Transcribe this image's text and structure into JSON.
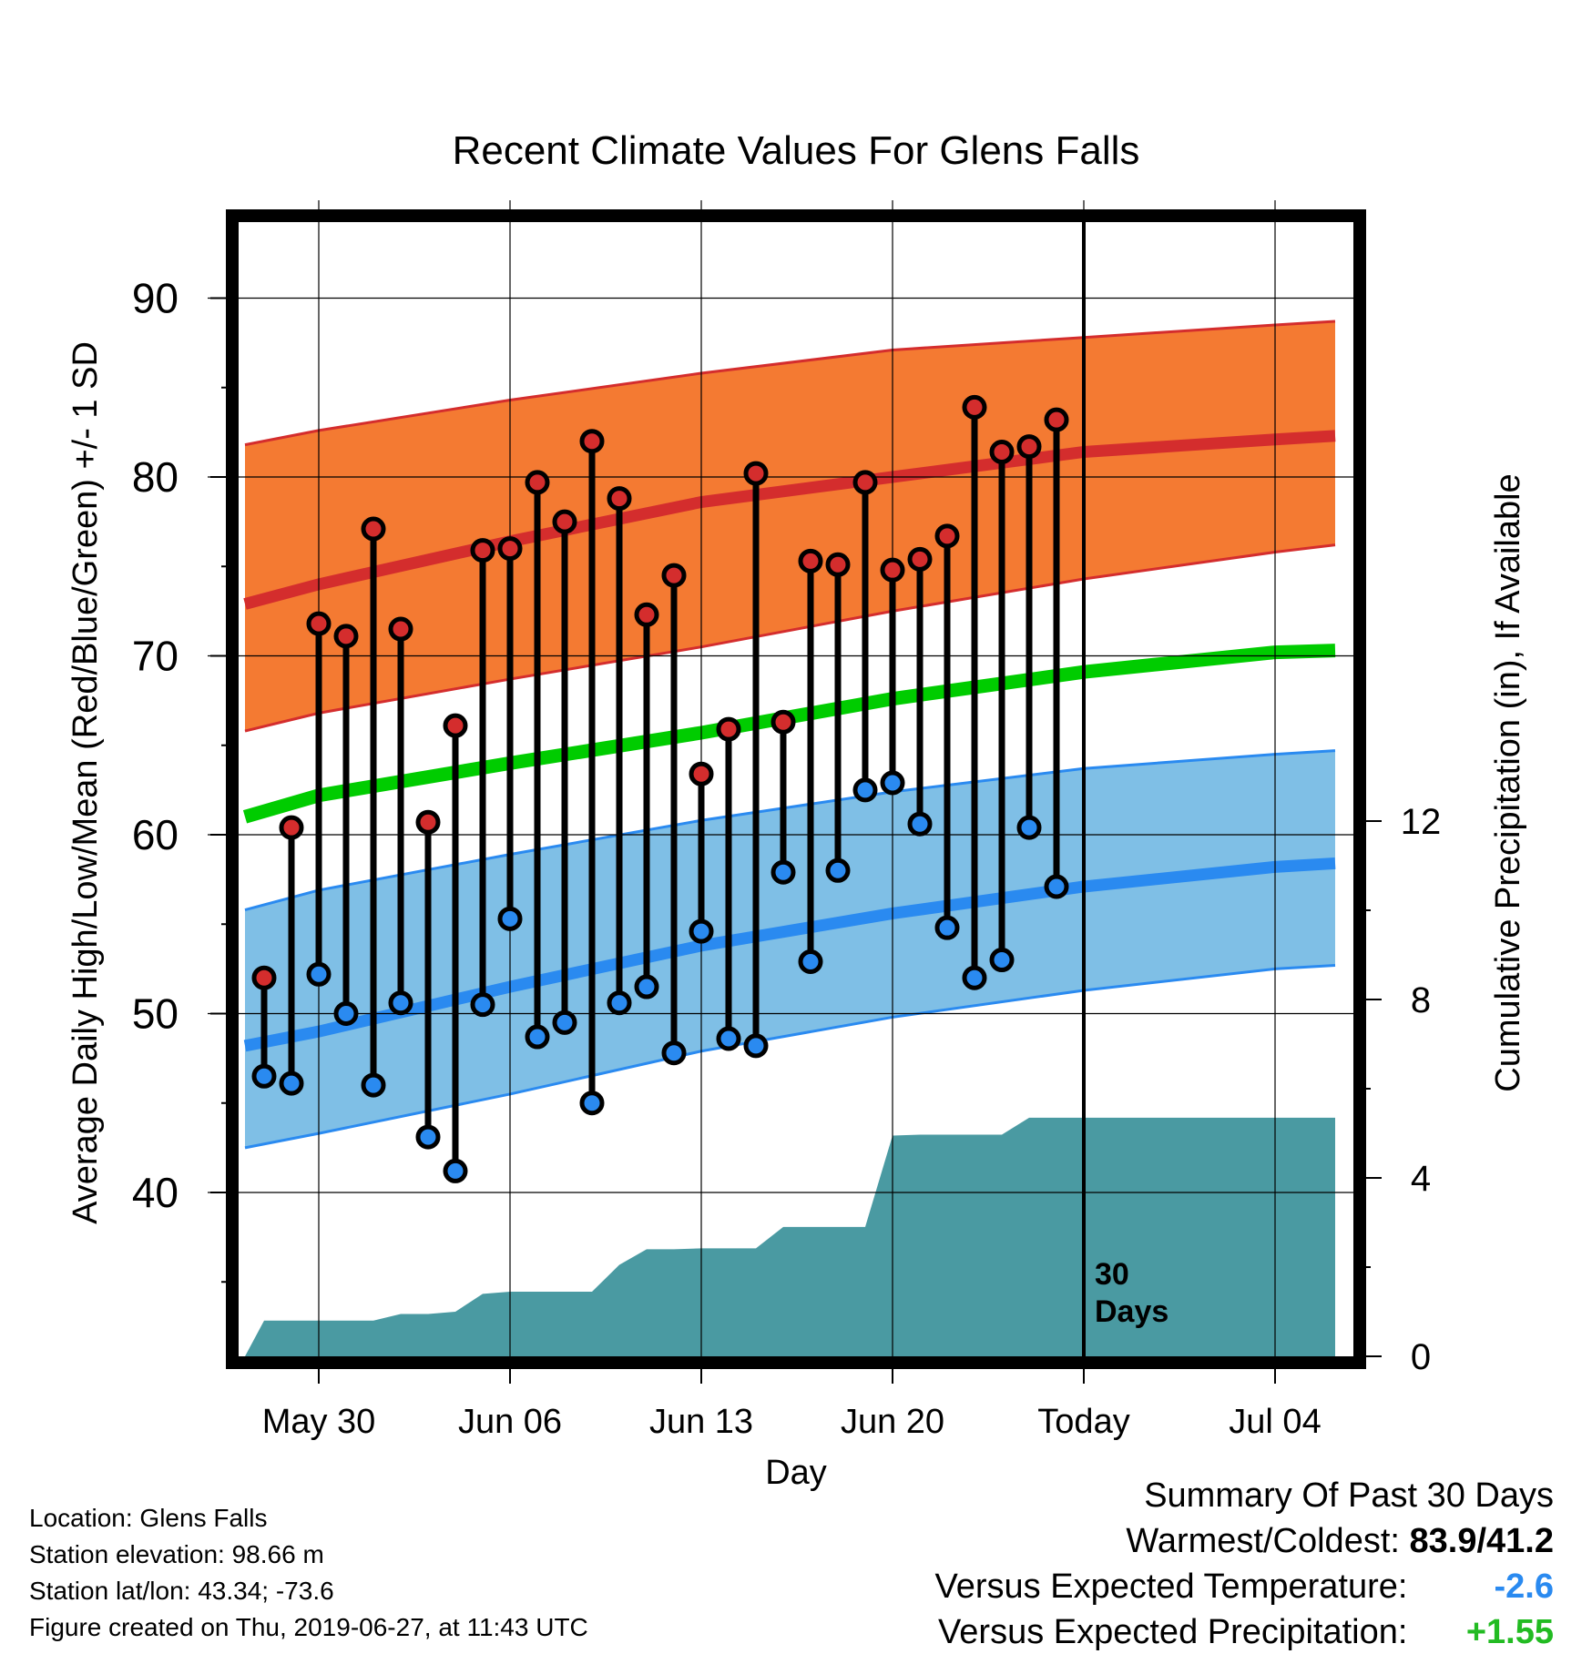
{
  "chart_data": {
    "type": "line",
    "title": "Recent Climate Values For Glens Falls",
    "xlabel": "Day",
    "ylabel": "Average Daily High/Low/Mean (Red/Blue/Green) +/- 1 SD",
    "y2label": "Cumulative Precipitation (in), If Available",
    "xlim": [
      -3.3,
      37.2
    ],
    "ylim": [
      31,
      94.5
    ],
    "y2ticks": [
      "0",
      "4",
      "8",
      "12"
    ],
    "y2ticks_values": [
      0,
      4,
      8,
      12
    ],
    "y2lim": [
      0,
      24
    ],
    "yticks": [
      "40",
      "50",
      "60",
      "70",
      "80",
      "90"
    ],
    "yticks_values": [
      40,
      50,
      60,
      70,
      80,
      90
    ],
    "xticks": [
      "May 30",
      "Jun 06",
      "Jun 13",
      "Jun 20",
      "Today",
      "Jul 04"
    ],
    "xticks_values": [
      0,
      7,
      14,
      21,
      28,
      35
    ],
    "today_marker": {
      "x": 28,
      "label_line1": "30",
      "label_line2": "Days"
    },
    "normals": {
      "x": [
        -2.7,
        0,
        7,
        14,
        21,
        28,
        35,
        37.2
      ],
      "high_mean": [
        72.9,
        74.0,
        76.4,
        78.6,
        80.0,
        81.4,
        82.1,
        82.3
      ],
      "high_upper": [
        81.8,
        82.6,
        84.3,
        85.8,
        87.1,
        87.8,
        88.5,
        88.7
      ],
      "high_lower": [
        65.8,
        66.8,
        68.7,
        70.5,
        72.5,
        74.3,
        75.8,
        76.2
      ],
      "low_mean": [
        48.2,
        49.0,
        51.5,
        53.8,
        55.6,
        57.1,
        58.2,
        58.4
      ],
      "low_upper": [
        55.8,
        56.9,
        58.9,
        60.8,
        62.4,
        63.7,
        64.5,
        64.7
      ],
      "low_lower": [
        42.5,
        43.3,
        45.5,
        47.9,
        49.8,
        51.3,
        52.5,
        52.7
      ],
      "daily_mean": [
        61.0,
        62.2,
        64.0,
        65.7,
        67.6,
        69.1,
        70.2,
        70.3
      ]
    },
    "series": [
      {
        "name": "High",
        "x": [
          -2,
          -1,
          0,
          1,
          2,
          3,
          4,
          5,
          6,
          7,
          8,
          9,
          10,
          11,
          12,
          13,
          14,
          15,
          16,
          17,
          18,
          19,
          20,
          21,
          22,
          23,
          24,
          25,
          26,
          27
        ],
        "values": [
          52.0,
          60.4,
          71.8,
          71.1,
          77.1,
          71.5,
          60.7,
          66.1,
          75.9,
          76.0,
          79.7,
          77.5,
          82.0,
          78.8,
          72.3,
          74.5,
          63.4,
          65.9,
          80.2,
          66.3,
          75.3,
          75.1,
          79.7,
          74.8,
          75.4,
          76.7,
          83.9,
          81.4,
          81.7,
          83.2
        ]
      },
      {
        "name": "Low",
        "x": [
          -2,
          -1,
          0,
          1,
          2,
          3,
          4,
          5,
          6,
          7,
          8,
          9,
          10,
          11,
          12,
          13,
          14,
          15,
          16,
          17,
          18,
          19,
          20,
          21,
          22,
          23,
          24,
          25,
          26,
          27
        ],
        "values": [
          46.5,
          46.1,
          52.2,
          50.0,
          46.0,
          50.6,
          43.1,
          41.2,
          50.5,
          55.3,
          48.7,
          49.5,
          45.0,
          50.6,
          51.5,
          47.8,
          54.6,
          48.6,
          48.2,
          57.9,
          52.9,
          58.0,
          62.5,
          62.9,
          60.6,
          54.8,
          52.0,
          53.0,
          60.4,
          57.1
        ]
      },
      {
        "name": "Cumulative Precipitation",
        "x": [
          -2.7,
          -2,
          -1,
          0,
          1,
          2,
          3,
          4,
          5,
          6,
          7,
          8,
          9,
          10,
          11,
          12,
          13,
          14,
          15,
          16,
          17,
          18,
          19,
          20,
          21,
          22,
          23,
          24,
          25,
          26,
          27,
          28,
          37.2
        ],
        "values": [
          0.0,
          0.8,
          0.8,
          0.8,
          0.8,
          0.8,
          0.95,
          0.95,
          1.0,
          1.4,
          1.45,
          1.45,
          1.45,
          1.45,
          2.05,
          2.4,
          2.4,
          2.42,
          2.42,
          2.42,
          2.9,
          2.9,
          2.9,
          2.9,
          4.95,
          4.97,
          4.97,
          4.97,
          4.97,
          5.35,
          5.35,
          5.35,
          5.35
        ]
      }
    ]
  },
  "footer": {
    "location": "Location: Glens Falls",
    "elevation": "Station elevation: 98.66 m",
    "latlon": "Station lat/lon: 43.34; -73.6",
    "created": "Figure created on Thu, 2019-06-27, at 11:43 UTC"
  },
  "summary": {
    "heading": "Summary Of Past 30 Days",
    "warmest_label": "Warmest/Coldest:",
    "warmest_value": "83.9/41.2",
    "temp_label": "Versus Expected Temperature:",
    "temp_value": "-2.6",
    "precip_label": "Versus Expected Precipitation:",
    "precip_value": "+1.55"
  },
  "colors": {
    "high_band": "#f47a32",
    "high_line": "#d42d2d",
    "low_band": "#7fbfe6",
    "low_line": "#2a8af0",
    "mean_line": "#00cc00",
    "precip_fill": "#4a9aa2",
    "high_dot": "#d42d2d",
    "low_dot": "#2a8af0",
    "temp_value": "#2a8af0",
    "precip_value": "#22bb22"
  }
}
